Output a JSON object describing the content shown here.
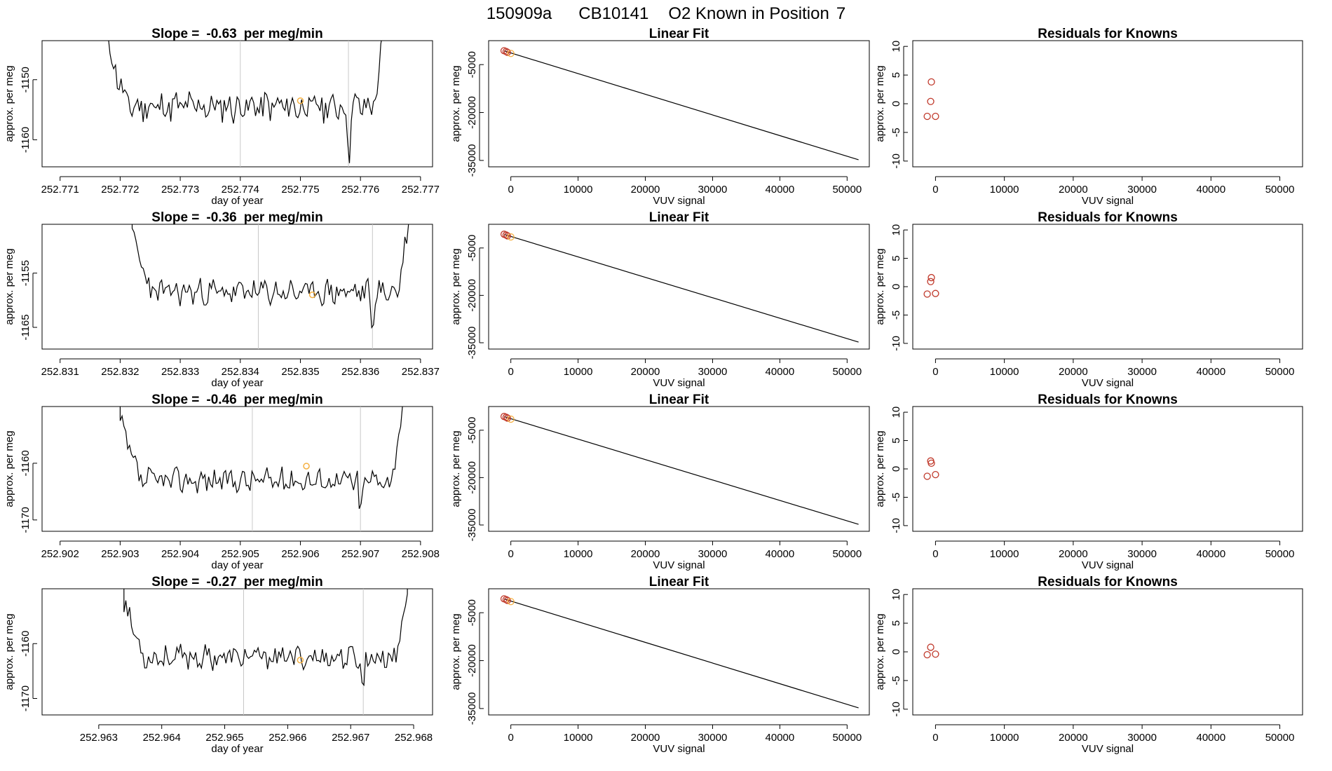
{
  "figure": {
    "title_date": "150909a",
    "title_cylinder": "CB10141",
    "title_desc": "O2 Known in Position",
    "title_pos": "7"
  },
  "colors": {
    "line": "#000000",
    "vline": "#c8c8c8",
    "point_orange": "#f5b041",
    "point_red": "#c0392b"
  },
  "chart_data": [
    {
      "type": "line",
      "panel": "drift",
      "row": 1,
      "title_prefix": "Slope =",
      "slope": "-0.63",
      "title_suffix": "per meg/min",
      "xlabel": "day of year",
      "ylabel": "approx. per meg",
      "xlim": [
        252.7707,
        252.7772
      ],
      "ylim": [
        -1164.5,
        -1143.5
      ],
      "xticks": [
        "252.771",
        "252.772",
        "252.773",
        "252.774",
        "252.775",
        "252.776",
        "252.777"
      ],
      "yticks": [
        "-1150",
        "-1160"
      ],
      "series": {
        "x_start": 252.7718,
        "x_end": 252.7764,
        "level": -1154.5,
        "noise": 2.2,
        "seed": 11
      },
      "vlines": [
        252.774,
        252.7758
      ],
      "highlight": {
        "x": 252.775,
        "y": -1153.5
      }
    },
    {
      "type": "line",
      "panel": "drift",
      "row": 2,
      "title_prefix": "Slope =",
      "slope": "-0.36",
      "title_suffix": "per meg/min",
      "xlabel": "day of year",
      "ylabel": "approx. per meg",
      "xlim": [
        252.8307,
        252.8372
      ],
      "ylim": [
        -1169.0,
        -1146.0
      ],
      "xticks": [
        "252.831",
        "252.832",
        "252.833",
        "252.834",
        "252.835",
        "252.836",
        "252.837"
      ],
      "yticks": [
        "-1155",
        "-1165"
      ],
      "series": {
        "x_start": 252.8322,
        "x_end": 252.8368,
        "level": -1158.5,
        "noise": 2.0,
        "seed": 23
      },
      "vlines": [
        252.8343,
        252.8362
      ],
      "highlight": {
        "x": 252.8352,
        "y": -1159.0
      }
    },
    {
      "type": "line",
      "panel": "drift",
      "row": 3,
      "title_prefix": "Slope =",
      "slope": "-0.46",
      "title_suffix": "per meg/min",
      "xlabel": "day of year",
      "ylabel": "approx. per meg",
      "xlim": [
        252.9017,
        252.9082
      ],
      "ylim": [
        -1172.0,
        -1150.0
      ],
      "xticks": [
        "252.902",
        "252.903",
        "252.904",
        "252.905",
        "252.906",
        "252.907",
        "252.908"
      ],
      "yticks": [
        "-1160",
        "-1170"
      ],
      "series": {
        "x_start": 252.903,
        "x_end": 252.9077,
        "level": -1163.0,
        "noise": 1.8,
        "seed": 37
      },
      "vlines": [
        252.9052,
        252.907
      ],
      "highlight": {
        "x": 252.9061,
        "y": -1160.5
      }
    },
    {
      "type": "line",
      "panel": "drift",
      "row": 4,
      "title_prefix": "Slope =",
      "slope": "-0.27",
      "title_suffix": "per meg/min",
      "xlabel": "day of year",
      "ylabel": "approx. per meg",
      "xlim": [
        252.9621,
        252.9683
      ],
      "ylim": [
        -1173.0,
        -1150.0
      ],
      "xticks": [
        "252.963",
        "252.964",
        "252.965",
        "252.966",
        "252.967",
        "252.968"
      ],
      "yticks": [
        "-1160",
        "-1170"
      ],
      "series": {
        "x_start": 252.9634,
        "x_end": 252.9679,
        "level": -1162.5,
        "noise": 1.8,
        "seed": 53
      },
      "vlines": [
        252.9653,
        252.9672
      ],
      "highlight": {
        "x": 252.9662,
        "y": -1163.0
      }
    },
    {
      "type": "line",
      "panel": "fit",
      "row": 1,
      "title": "Linear Fit",
      "xlabel": "VUV signal",
      "ylabel": "approx. per meg",
      "xlim": [
        -3300,
        53300
      ],
      "ylim": [
        -37000,
        2500
      ],
      "xticks": [
        0,
        10000,
        20000,
        30000,
        40000,
        50000
      ],
      "yticks": [
        -5000,
        -20000,
        -35000
      ],
      "line": {
        "x": [
          -1000,
          51700
        ],
        "y": [
          -700,
          -34800
        ]
      },
      "points": [
        {
          "x": -1000,
          "y": -650,
          "color": "red"
        },
        {
          "x": -700,
          "y": -900,
          "color": "red"
        },
        {
          "x": -500,
          "y": -1150,
          "color": "red"
        },
        {
          "x": 0,
          "y": -1500,
          "color": "orange"
        }
      ]
    },
    {
      "type": "line",
      "panel": "fit",
      "row": 2,
      "title": "Linear Fit",
      "xlabel": "VUV signal",
      "ylabel": "approx. per meg",
      "xlim": [
        -3300,
        53300
      ],
      "ylim": [
        -37000,
        2500
      ],
      "xticks": [
        0,
        10000,
        20000,
        30000,
        40000,
        50000
      ],
      "yticks": [
        -5000,
        -20000,
        -35000
      ],
      "line": {
        "x": [
          -1000,
          51700
        ],
        "y": [
          -700,
          -34800
        ]
      },
      "points": [
        {
          "x": -1000,
          "y": -650,
          "color": "red"
        },
        {
          "x": -700,
          "y": -900,
          "color": "red"
        },
        {
          "x": -500,
          "y": -1150,
          "color": "red"
        },
        {
          "x": 0,
          "y": -1500,
          "color": "orange"
        }
      ]
    },
    {
      "type": "line",
      "panel": "fit",
      "row": 3,
      "title": "Linear Fit",
      "xlabel": "VUV signal",
      "ylabel": "approx. per meg",
      "xlim": [
        -3300,
        53300
      ],
      "ylim": [
        -37000,
        2500
      ],
      "xticks": [
        0,
        10000,
        20000,
        30000,
        40000,
        50000
      ],
      "yticks": [
        -5000,
        -20000,
        -35000
      ],
      "line": {
        "x": [
          -1000,
          51700
        ],
        "y": [
          -700,
          -34800
        ]
      },
      "points": [
        {
          "x": -1000,
          "y": -650,
          "color": "red"
        },
        {
          "x": -700,
          "y": -900,
          "color": "red"
        },
        {
          "x": -500,
          "y": -1150,
          "color": "red"
        },
        {
          "x": 0,
          "y": -1500,
          "color": "orange"
        }
      ]
    },
    {
      "type": "line",
      "panel": "fit",
      "row": 4,
      "title": "Linear Fit",
      "xlabel": "VUV signal",
      "ylabel": "approx. per meg",
      "xlim": [
        -3300,
        53300
      ],
      "ylim": [
        -37000,
        2500
      ],
      "xticks": [
        0,
        10000,
        20000,
        30000,
        40000,
        50000
      ],
      "yticks": [
        -5000,
        -20000,
        -35000
      ],
      "line": {
        "x": [
          -1000,
          51700
        ],
        "y": [
          -700,
          -34800
        ]
      },
      "points": [
        {
          "x": -1000,
          "y": -650,
          "color": "red"
        },
        {
          "x": -700,
          "y": -900,
          "color": "red"
        },
        {
          "x": -500,
          "y": -1150,
          "color": "red"
        },
        {
          "x": 0,
          "y": -1500,
          "color": "orange"
        }
      ]
    },
    {
      "type": "scatter",
      "panel": "resid",
      "row": 1,
      "title": "Residuals for Knowns",
      "xlabel": "VUV signal",
      "ylabel": "approx. per meg",
      "xlim": [
        -3300,
        53300
      ],
      "ylim": [
        -11,
        11
      ],
      "xticks": [
        0,
        10000,
        20000,
        30000,
        40000,
        50000
      ],
      "yticks": [
        10,
        5,
        0,
        -5,
        -10
      ],
      "points": [
        {
          "x": -1200,
          "y": -2.2
        },
        {
          "x": -700,
          "y": 0.4
        },
        {
          "x": -600,
          "y": 3.8
        },
        {
          "x": 0,
          "y": -2.2
        }
      ]
    },
    {
      "type": "scatter",
      "panel": "resid",
      "row": 2,
      "title": "Residuals for Knowns",
      "xlabel": "VUV signal",
      "ylabel": "approx. per meg",
      "xlim": [
        -3300,
        53300
      ],
      "ylim": [
        -11,
        11
      ],
      "xticks": [
        0,
        10000,
        20000,
        30000,
        40000,
        50000
      ],
      "yticks": [
        10,
        5,
        0,
        -5,
        -10
      ],
      "points": [
        {
          "x": -1200,
          "y": -1.3
        },
        {
          "x": -700,
          "y": 0.9
        },
        {
          "x": -600,
          "y": 1.6
        },
        {
          "x": 0,
          "y": -1.2
        }
      ]
    },
    {
      "type": "scatter",
      "panel": "resid",
      "row": 3,
      "title": "Residuals for Knowns",
      "xlabel": "VUV signal",
      "ylabel": "approx. per meg",
      "xlim": [
        -3300,
        53300
      ],
      "ylim": [
        -11,
        11
      ],
      "xticks": [
        0,
        10000,
        20000,
        30000,
        40000,
        50000
      ],
      "yticks": [
        10,
        5,
        0,
        -5,
        -10
      ],
      "points": [
        {
          "x": -1200,
          "y": -1.3
        },
        {
          "x": -700,
          "y": 1.4
        },
        {
          "x": -600,
          "y": 1.0
        },
        {
          "x": 0,
          "y": -1.0
        }
      ]
    },
    {
      "type": "scatter",
      "panel": "resid",
      "row": 4,
      "title": "Residuals for Knowns",
      "xlabel": "VUV signal",
      "ylabel": "approx. per meg",
      "xlim": [
        -3300,
        53300
      ],
      "ylim": [
        -11,
        11
      ],
      "xticks": [
        0,
        10000,
        20000,
        30000,
        40000,
        50000
      ],
      "yticks": [
        10,
        5,
        0,
        -5,
        -10
      ],
      "points": [
        {
          "x": -1200,
          "y": -0.5
        },
        {
          "x": -700,
          "y": 0.8
        },
        {
          "x": 0,
          "y": -0.4
        }
      ]
    }
  ]
}
